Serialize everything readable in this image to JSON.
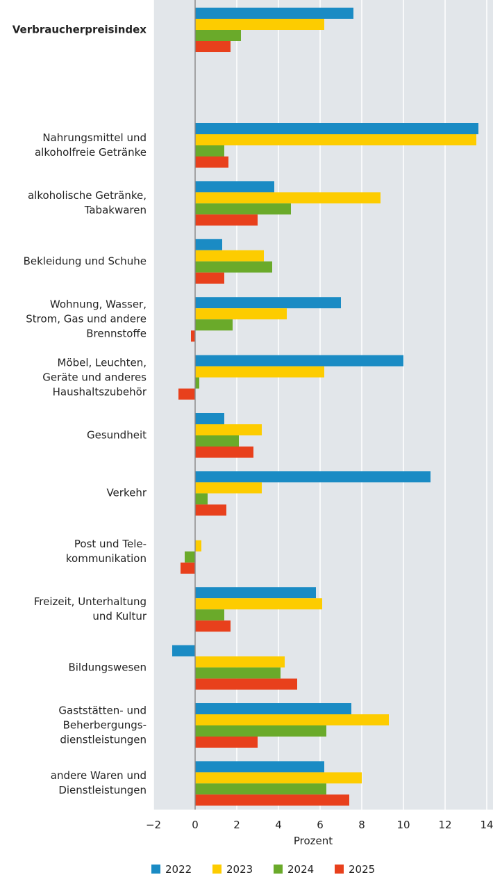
{
  "chart_data": {
    "type": "hbar",
    "categories": [
      "Verbraucherpreisindex",
      "Nahrungsmittel und\nalkoholfreie Getränke",
      "alkoholische Getränke,\nTabakwaren",
      "Bekleidung und Schuhe",
      "Wohnung, Wasser,\nStrom, Gas und andere\nBrennstoffe",
      "Möbel, Leuchten,\nGeräte und anderes\nHaushaltszubehör",
      "Gesundheit",
      "Verkehr",
      "Post und Tele-\nkommunikation",
      "Freizeit, Unterhaltung\nund Kultur",
      "Bildungswesen",
      "Gaststätten- und\nBeherbergungs-\ndienstleistungen",
      "andere Waren und\nDienstleistungen"
    ],
    "series": [
      {
        "name": "2022",
        "color": "#1a8bc4",
        "values": [
          7.6,
          13.6,
          3.8,
          1.3,
          7.0,
          10.0,
          1.4,
          11.3,
          null,
          5.8,
          -1.1,
          7.5,
          6.2
        ]
      },
      {
        "name": "2023",
        "color": "#fdcc00",
        "values": [
          6.2,
          13.5,
          8.9,
          3.3,
          4.4,
          6.2,
          3.2,
          3.2,
          0.3,
          6.1,
          4.3,
          9.3,
          8.0
        ]
      },
      {
        "name": "2024",
        "color": "#6aaa2a",
        "values": [
          2.2,
          1.4,
          4.6,
          3.7,
          1.8,
          0.2,
          2.1,
          0.6,
          -0.5,
          1.4,
          4.1,
          6.3,
          6.3
        ]
      },
      {
        "name": "2025",
        "color": "#e8401c",
        "values": [
          1.7,
          1.6,
          3.0,
          1.4,
          -0.2,
          -0.8,
          2.8,
          1.5,
          -0.7,
          1.7,
          4.9,
          3.0,
          7.4
        ]
      }
    ],
    "xlabel": "Prozent",
    "xlim": [
      -2,
      14.3
    ],
    "xticks": [
      {
        "value": -2,
        "label": "−2"
      },
      0,
      2,
      4,
      6,
      8,
      10,
      12,
      14
    ],
    "grid": true
  }
}
